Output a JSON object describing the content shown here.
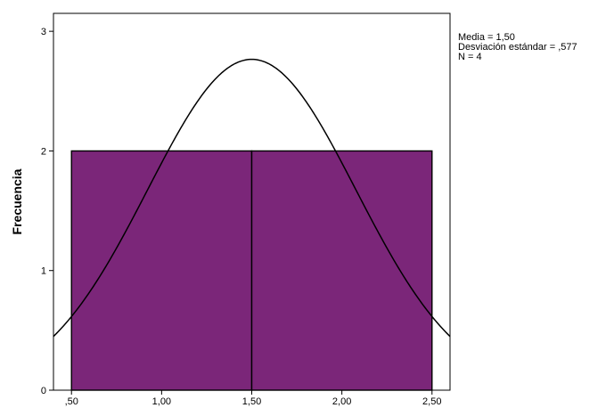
{
  "chart_data": {
    "type": "bar",
    "subtype": "histogram",
    "ylabel": "Frecuencia",
    "xlabel": "",
    "x_range": [
      0.4,
      2.6
    ],
    "ylim": [
      0,
      3.15
    ],
    "x_ticks": [
      0.5,
      1.0,
      1.5,
      2.0,
      2.5
    ],
    "x_tick_labels": [
      ",50",
      "1,00",
      "1,50",
      "2,00",
      "2,50"
    ],
    "y_ticks": [
      0,
      1,
      2,
      3
    ],
    "y_tick_labels": [
      "0",
      "1",
      "2",
      "3"
    ],
    "bins": [
      {
        "x0": 0.5,
        "x1": 1.5,
        "value": 2
      },
      {
        "x0": 1.5,
        "x1": 2.5,
        "value": 2
      }
    ],
    "bar_color": "#7b2679",
    "normal_curve": {
      "mean": 1.5,
      "std": 0.577,
      "n": 4,
      "bin_width": 1.0
    },
    "grid": false,
    "legend": "none"
  },
  "stats": {
    "mean_line": "Media = 1,50",
    "std_line": "Desviación estándar = ,577",
    "n_line": "N = 4"
  }
}
